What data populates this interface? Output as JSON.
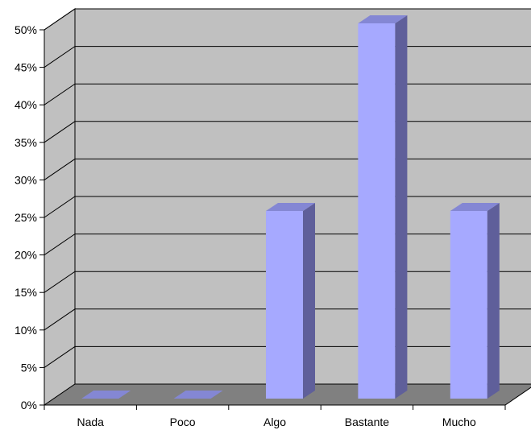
{
  "chart_data": {
    "type": "bar",
    "three_d": true,
    "categories": [
      "Nada",
      "Poco",
      "Algo",
      "Bastante",
      "Mucho"
    ],
    "values": [
      0,
      0,
      25,
      50,
      25
    ],
    "ylim": [
      0,
      50
    ],
    "y_ticks": [
      "0%",
      "5%",
      "10%",
      "15%",
      "20%",
      "25%",
      "30%",
      "35%",
      "40%",
      "45%",
      "50%"
    ],
    "y_tick_values": [
      0,
      5,
      10,
      15,
      20,
      25,
      30,
      35,
      40,
      45,
      50
    ],
    "grid": true,
    "legend": "none",
    "colors": {
      "wall": "#c0c0c0",
      "floor": "#808080",
      "bar_front": "#a6a9ff",
      "bar_side": "#5f5f9a",
      "bar_top": "#8487d4",
      "grid": "#000000"
    }
  }
}
